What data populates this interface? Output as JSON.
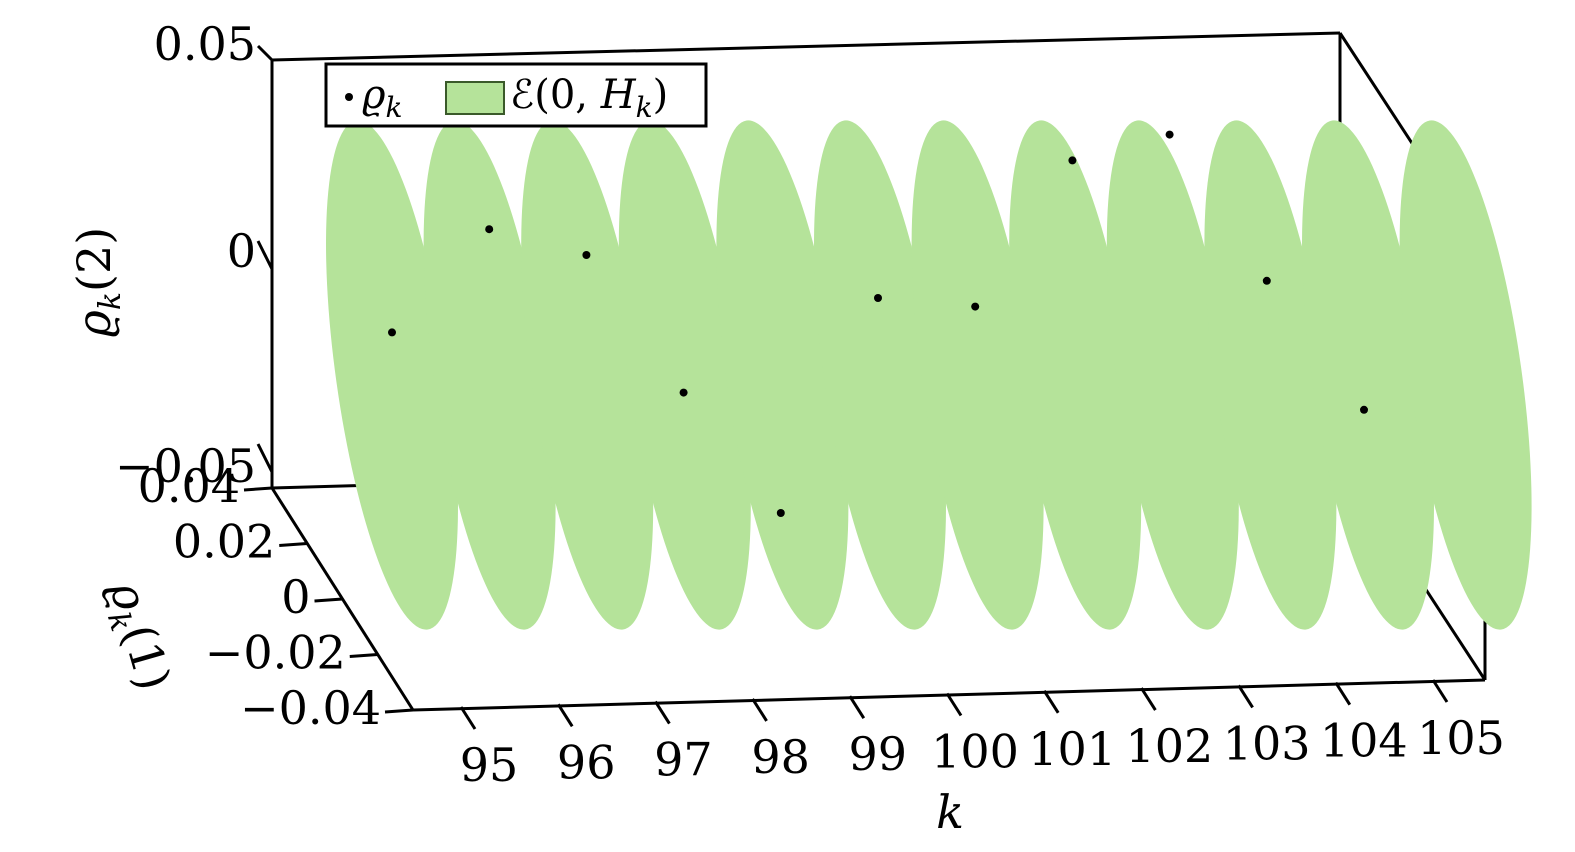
{
  "chart_data": {
    "type": "scatter",
    "x_axis": {
      "label": "k",
      "ticks": [
        "95",
        "96",
        "97",
        "98",
        "99",
        "100",
        "101",
        "102",
        "103",
        "104",
        "105"
      ],
      "range": [
        94,
        105
      ]
    },
    "y_axis": {
      "label": "ϱ",
      "label_sub": "k",
      "label_arg": "(1)",
      "ticks": [
        "0.04",
        "0.02",
        "0",
        "−0.02",
        "−0.04"
      ],
      "range": [
        -0.04,
        0.04
      ]
    },
    "z_axis": {
      "label": "ϱ",
      "label_sub": "k",
      "label_arg": "(2)",
      "ticks": [
        "0.05",
        "0",
        "−0.05"
      ],
      "range": [
        -0.05,
        0.05
      ]
    },
    "legend": {
      "placement": "top-left",
      "entries": [
        {
          "marker": "dot",
          "symbol": "ϱ",
          "sub": "k"
        },
        {
          "marker": "patch",
          "prefix": "ℰ(0, ",
          "symbol": "H",
          "sub": "k",
          "suffix": ")"
        }
      ]
    },
    "ellipse_color": "#b5e39a",
    "point_color": "#000000",
    "ellipses_k": [
      94,
      95,
      96,
      97,
      98,
      99,
      100,
      101,
      102,
      103,
      104,
      105
    ],
    "points": [
      {
        "k": 94.3,
        "z": -0.018
      },
      {
        "k": 95.3,
        "z": 0.006
      },
      {
        "k": 96.3,
        "z": 0.0
      },
      {
        "k": 97.3,
        "z": -0.032
      },
      {
        "k": 98.3,
        "z": -0.06
      },
      {
        "k": 99.3,
        "z": -0.01
      },
      {
        "k": 100.3,
        "z": -0.012
      },
      {
        "k": 101.3,
        "z": 0.022
      },
      {
        "k": 102.3,
        "z": 0.028
      },
      {
        "k": 103.3,
        "z": -0.006
      },
      {
        "k": 104.3,
        "z": -0.036
      }
    ]
  }
}
